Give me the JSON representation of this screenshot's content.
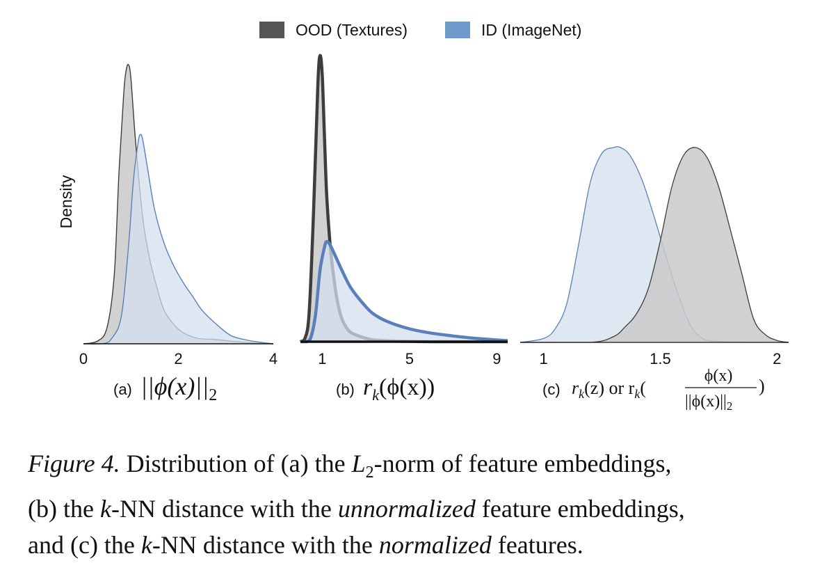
{
  "legend": {
    "entries": [
      {
        "label": "OOD (Textures)",
        "color": "#555555"
      },
      {
        "label": "ID (ImageNet)",
        "color": "#7099cc"
      }
    ]
  },
  "ylabel": "Density",
  "colors": {
    "ood_fill": "#c9c9c9",
    "ood_line": "#3d3d3d",
    "id_fill": "#d4dfef",
    "id_line": "#5a80bb"
  },
  "subplots": [
    {
      "prefix": "(a)",
      "label": "||ϕ(x)||",
      "sub": "2"
    },
    {
      "prefix": "(b)",
      "label": "r",
      "sub": "k",
      "label_rest": "(ϕ(x))"
    },
    {
      "prefix": "(c)",
      "label": "r",
      "sub": "k",
      "label_rest": "(z) or r",
      "sub2": "k",
      "frac_num": "ϕ(x)",
      "frac_den": "||ϕ(x)||",
      "frac_den_sub": "2"
    }
  ],
  "caption": {
    "fig_label": "Figure 4.",
    "line1_a": "Distribution of (a) the ",
    "l2_L": "L",
    "l2_sub": "2",
    "line1_b": "-norm of feature embeddings,",
    "line2_a": "(b) the ",
    "k1": "k",
    "line2_b": "-NN distance with the ",
    "unnormalized": "unnormalized",
    "line2_c": " feature embeddings,",
    "line3_a": "and (c) the ",
    "k2": "k",
    "line3_b": "-NN distance with the ",
    "normalized": "normalized",
    "line3_c": " features."
  },
  "chart_data": [
    {
      "type": "area",
      "title": "(a) ||ϕ(x)||2",
      "ylabel": "Density",
      "xlim": [
        0,
        4
      ],
      "xticks": [
        {
          "value": 0,
          "label": "0"
        },
        {
          "value": 2,
          "label": "2"
        },
        {
          "value": 4,
          "label": "4"
        }
      ],
      "series": [
        {
          "name": "OOD (Textures)",
          "x": [
            0,
            0.3,
            0.5,
            0.65,
            0.75,
            0.85,
            0.9,
            0.95,
            1.0,
            1.1,
            1.25,
            1.4,
            1.55,
            1.7,
            1.9,
            2.1,
            2.4,
            2.8,
            3.2,
            3.6,
            4.0
          ],
          "y": [
            0.0,
            0.01,
            0.06,
            0.25,
            0.62,
            0.9,
            0.98,
            1.0,
            0.95,
            0.72,
            0.45,
            0.3,
            0.2,
            0.12,
            0.07,
            0.04,
            0.02,
            0.015,
            0.008,
            0.003,
            0.0
          ]
        },
        {
          "name": "ID (ImageNet)",
          "x": [
            0,
            0.4,
            0.6,
            0.8,
            0.95,
            1.05,
            1.15,
            1.2,
            1.25,
            1.35,
            1.5,
            1.7,
            1.9,
            2.1,
            2.3,
            2.5,
            2.8,
            3.1,
            3.4,
            3.7,
            4.0
          ],
          "y": [
            0.0,
            0.0,
            0.02,
            0.1,
            0.35,
            0.58,
            0.72,
            0.75,
            0.73,
            0.63,
            0.48,
            0.36,
            0.28,
            0.22,
            0.17,
            0.12,
            0.07,
            0.03,
            0.015,
            0.006,
            0.0
          ]
        }
      ]
    },
    {
      "type": "area",
      "title": "(b) rk(ϕ(x))",
      "xlim": [
        0,
        9.5
      ],
      "xticks": [
        {
          "value": 1,
          "label": "1"
        },
        {
          "value": 5,
          "label": "5"
        },
        {
          "value": 9,
          "label": "9"
        }
      ],
      "series": [
        {
          "name": "OOD (Textures)",
          "x": [
            0,
            0.2,
            0.4,
            0.6,
            0.8,
            0.9,
            1.0,
            1.1,
            1.2,
            1.35,
            1.5,
            1.7,
            1.9,
            2.2,
            2.5,
            3.0,
            3.5,
            4.5,
            6.0,
            9.5
          ],
          "y": [
            0.0,
            0.01,
            0.1,
            0.45,
            0.9,
            1.0,
            0.93,
            0.72,
            0.52,
            0.35,
            0.24,
            0.14,
            0.08,
            0.04,
            0.025,
            0.012,
            0.005,
            0.002,
            0.0,
            0.0
          ]
        },
        {
          "name": "ID (ImageNet)",
          "x": [
            0,
            0.3,
            0.5,
            0.7,
            0.9,
            1.1,
            1.2,
            1.35,
            1.6,
            1.9,
            2.3,
            2.8,
            3.3,
            4.0,
            5.0,
            6.0,
            7.0,
            8.0,
            9.0,
            9.5
          ],
          "y": [
            0.0,
            0.0,
            0.02,
            0.1,
            0.25,
            0.33,
            0.35,
            0.34,
            0.3,
            0.25,
            0.19,
            0.14,
            0.1,
            0.07,
            0.045,
            0.03,
            0.02,
            0.012,
            0.006,
            0.004
          ]
        }
      ]
    },
    {
      "type": "area",
      "title": "(c) rk(z) or rk(ϕ(x)/||ϕ(x)||2)",
      "xlim": [
        0.9,
        2.05
      ],
      "xticks": [
        {
          "value": 1,
          "label": "1"
        },
        {
          "value": 1.5,
          "label": "1.5"
        },
        {
          "value": 2,
          "label": "2"
        }
      ],
      "series": [
        {
          "name": "OOD (Textures)",
          "x": [
            0.9,
            1.2,
            1.3,
            1.35,
            1.4,
            1.45,
            1.5,
            1.55,
            1.6,
            1.65,
            1.7,
            1.75,
            1.8,
            1.85,
            1.9,
            1.95,
            2.0,
            2.05
          ],
          "y": [
            0.0,
            0.0,
            0.03,
            0.08,
            0.15,
            0.28,
            0.52,
            0.8,
            0.96,
            1.0,
            0.95,
            0.8,
            0.58,
            0.35,
            0.12,
            0.04,
            0.01,
            0.0
          ]
        },
        {
          "name": "ID (ImageNet)",
          "x": [
            0.9,
            1.0,
            1.05,
            1.1,
            1.15,
            1.2,
            1.25,
            1.3,
            1.33,
            1.37,
            1.42,
            1.47,
            1.52,
            1.57,
            1.62,
            1.67,
            1.75,
            2.05
          ],
          "y": [
            0.0,
            0.02,
            0.07,
            0.2,
            0.5,
            0.82,
            0.97,
            1.0,
            1.0,
            0.96,
            0.84,
            0.66,
            0.46,
            0.27,
            0.11,
            0.03,
            0.005,
            0.0
          ]
        }
      ]
    }
  ]
}
